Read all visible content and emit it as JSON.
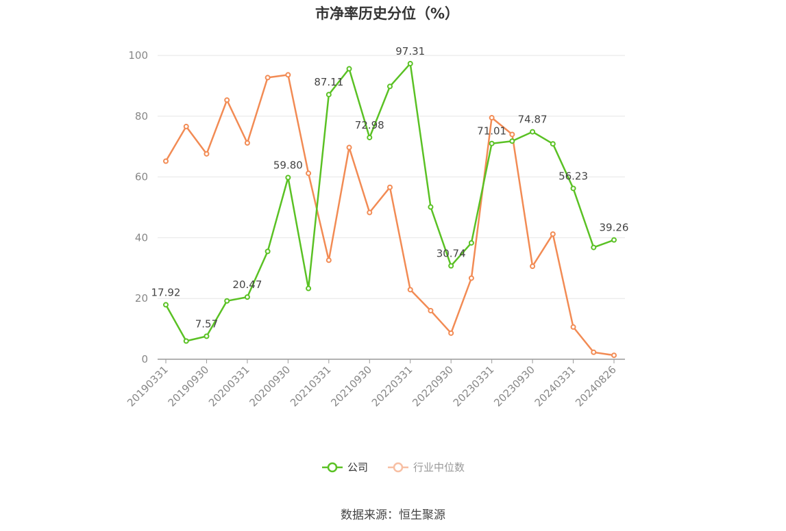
{
  "title": "市净率历史分位（%）",
  "source": "数据来源：恒生聚源",
  "colors": {
    "company": "#5ac124",
    "industry": "#f28b54",
    "grid": "#e6e6e6",
    "axis": "#999999",
    "tick": "#888888"
  },
  "chart_data": {
    "type": "line",
    "title": "市净率历史分位（%）",
    "xlabel": "",
    "ylabel": "",
    "ylim": [
      0,
      100
    ],
    "yticks": [
      0,
      20,
      40,
      60,
      80,
      100
    ],
    "grid": true,
    "legend_position": "bottom-center",
    "x": [
      "20190331",
      "20190630",
      "20190930",
      "20191231",
      "20200331",
      "20200630",
      "20200930",
      "20201231",
      "20210331",
      "20210630",
      "20210930",
      "20211231",
      "20220331",
      "20220630",
      "20220930",
      "20221231",
      "20230331",
      "20230630",
      "20230930",
      "20231231",
      "20240331",
      "20240630",
      "20240826"
    ],
    "x_tick_labels": [
      "20190331",
      "20190930",
      "20200331",
      "20200930",
      "20210331",
      "20210930",
      "20220331",
      "20220930",
      "20230331",
      "20230930",
      "20240331",
      "20240826"
    ],
    "series": [
      {
        "name": "公司",
        "color": "#5ac124",
        "values": [
          17.92,
          6.0,
          7.57,
          19.2,
          20.47,
          35.5,
          59.8,
          23.3,
          87.11,
          95.6,
          72.98,
          89.8,
          97.31,
          50.1,
          30.74,
          38.3,
          71.01,
          71.8,
          74.87,
          70.9,
          56.23,
          36.8,
          39.26
        ],
        "point_labels": [
          "17.92",
          "",
          "7.57",
          "",
          "20.47",
          "",
          "59.80",
          "",
          "87.11",
          "",
          "72.98",
          "",
          "97.31",
          "",
          "30.74",
          "",
          "71.01",
          "",
          "74.87",
          "",
          "56.23",
          "",
          "39.26"
        ]
      },
      {
        "name": "行业中位数",
        "color": "#f28b54",
        "values": [
          65.2,
          76.6,
          67.6,
          85.3,
          71.2,
          92.7,
          93.6,
          61.2,
          32.6,
          69.7,
          48.3,
          56.6,
          22.9,
          16.0,
          8.6,
          26.7,
          79.5,
          74.0,
          30.6,
          41.2,
          10.6,
          2.3,
          1.3
        ]
      }
    ]
  }
}
